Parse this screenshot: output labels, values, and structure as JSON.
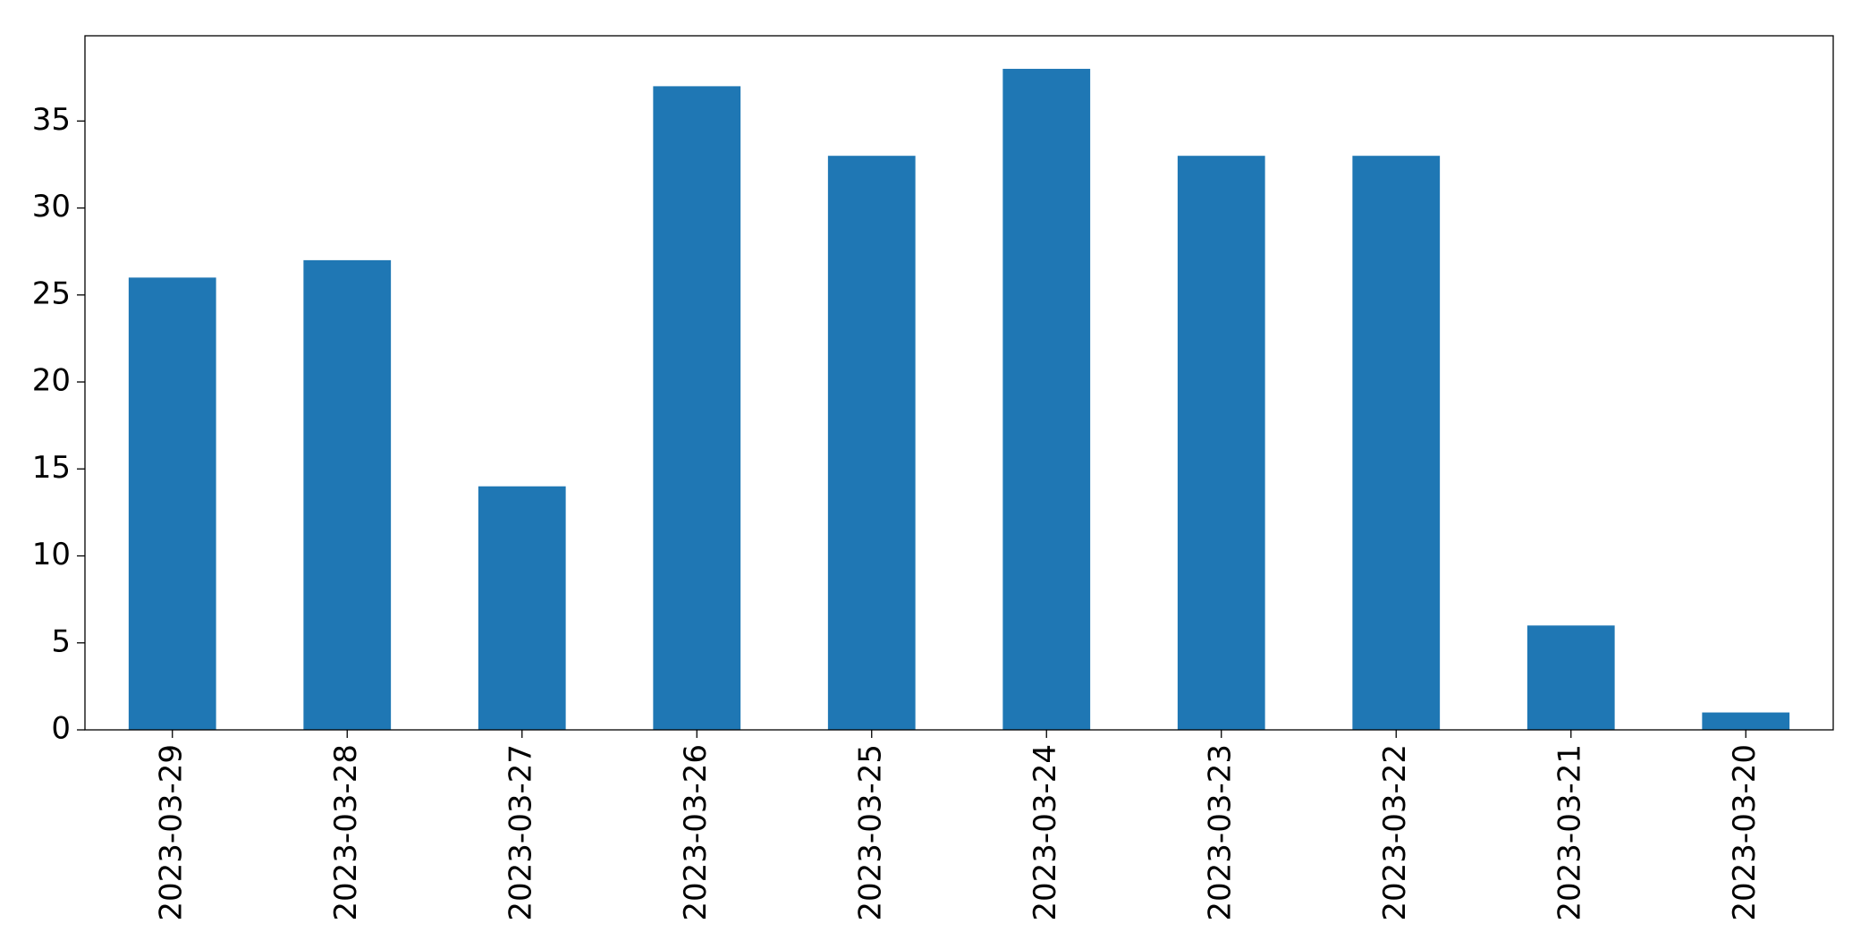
{
  "chart_data": {
    "type": "bar",
    "categories": [
      "2023-03-29",
      "2023-03-28",
      "2023-03-27",
      "2023-03-26",
      "2023-03-25",
      "2023-03-24",
      "2023-03-23",
      "2023-03-22",
      "2023-03-21",
      "2023-03-20"
    ],
    "values": [
      26,
      27,
      14,
      37,
      33,
      38,
      33,
      33,
      6,
      1
    ],
    "color": "#1f77b4",
    "ylim": [
      0,
      39.9
    ],
    "yticks": [
      0,
      5,
      10,
      15,
      20,
      25,
      30,
      35
    ],
    "grid": false
  }
}
